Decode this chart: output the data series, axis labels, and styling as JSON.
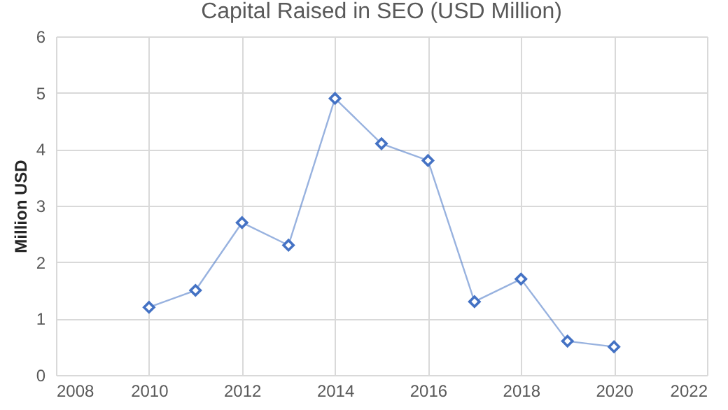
{
  "chart_data": {
    "type": "line",
    "title": "Capital Raised in SEO (USD Million)",
    "ylabel": "Million USD",
    "x": [
      2010,
      2011,
      2012,
      2013,
      2014,
      2015,
      2016,
      2017,
      2018,
      2019,
      2020
    ],
    "series": [
      {
        "color": "#4472c4",
        "values": [
          1.2,
          1.5,
          2.7,
          2.3,
          4.9,
          4.1,
          3.8,
          1.3,
          1.7,
          0.6,
          0.5
        ]
      }
    ],
    "xlim": [
      2008,
      2022
    ],
    "xticks": [
      2008,
      2010,
      2012,
      2014,
      2016,
      2018,
      2020,
      2022
    ],
    "ylim": [
      0,
      6
    ],
    "yticks": [
      0,
      1,
      2,
      3,
      4,
      5,
      6
    ],
    "grid": true,
    "marker": "diamond",
    "line_style": "solid"
  }
}
